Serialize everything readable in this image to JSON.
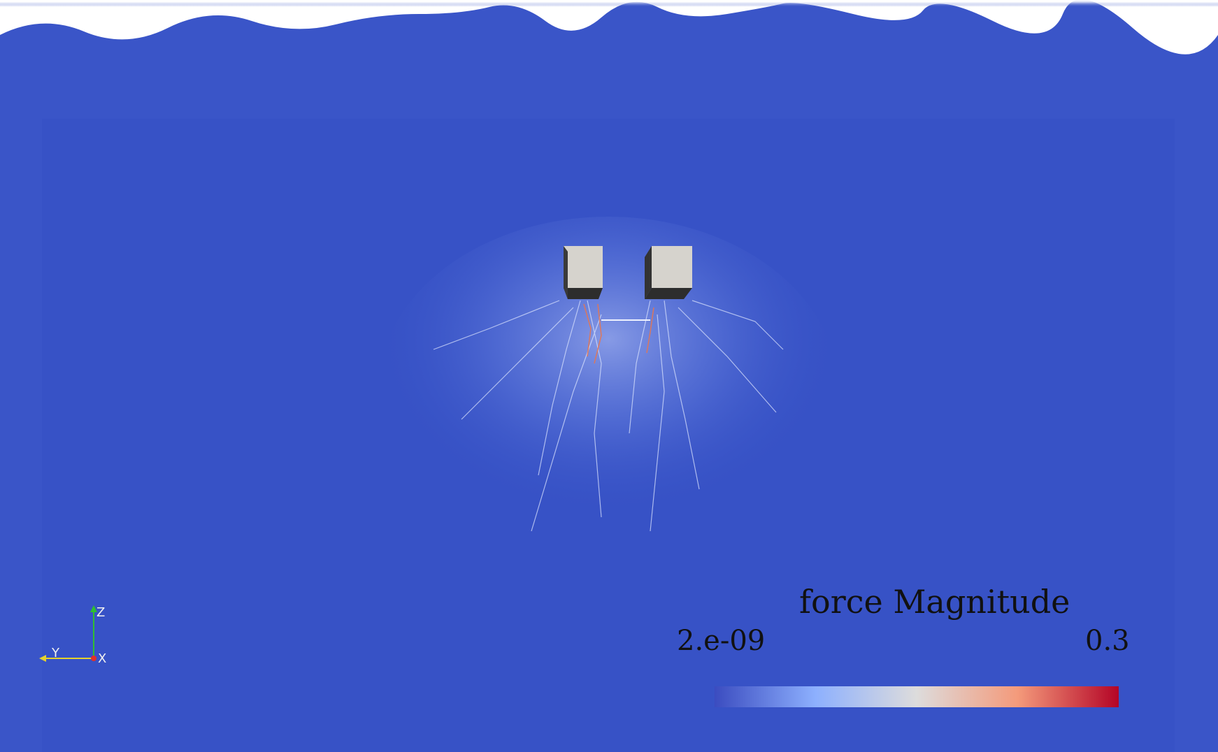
{
  "legend": {
    "title": "force Magnitude",
    "min_label": "2.e-09",
    "max_label": "0.3",
    "colors": [
      "#3b4cc0",
      "#8db0fe",
      "#dddcdc",
      "#f49a7b",
      "#b40426"
    ]
  },
  "axes_triad": {
    "z_label": "Z",
    "y_label": "Y",
    "x_label": "X"
  },
  "scene": {
    "background_color": "#3a55c8",
    "object_color": "#d6d3cd",
    "objects": [
      "left-cube",
      "right-cube"
    ]
  }
}
